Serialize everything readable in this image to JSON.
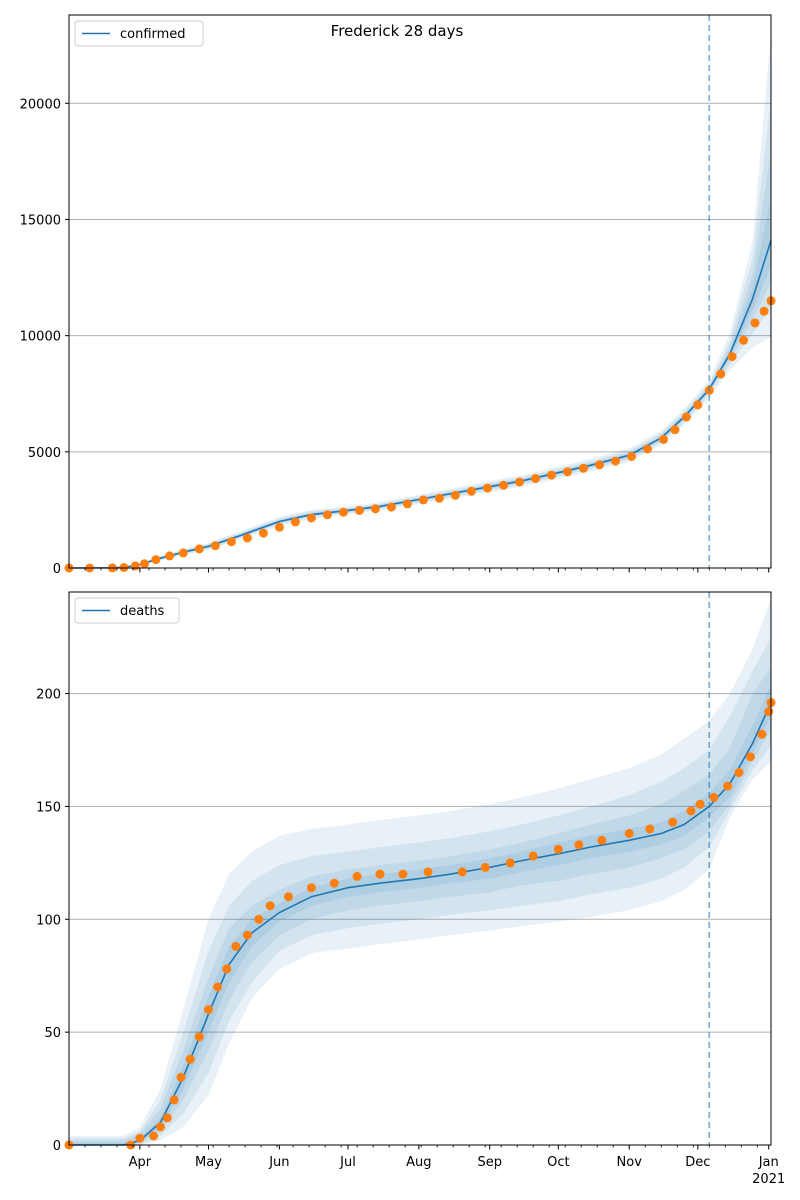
{
  "title": "Frederick 28 days",
  "colors": {
    "model": "#1f77b4",
    "observed": "#ff7f0e",
    "band": "#1f77b4",
    "grid": "#b0b0b0",
    "forecast_line": "#1f77b4"
  },
  "x_axis": {
    "range": [
      "2020-03-01",
      "2021-01-02"
    ],
    "month_labels": [
      {
        "date": "2020-04-01",
        "label": "Apr"
      },
      {
        "date": "2020-05-01",
        "label": "May"
      },
      {
        "date": "2020-06-01",
        "label": "Jun"
      },
      {
        "date": "2020-07-01",
        "label": "Jul"
      },
      {
        "date": "2020-08-01",
        "label": "Aug"
      },
      {
        "date": "2020-09-01",
        "label": "Sep"
      },
      {
        "date": "2020-10-01",
        "label": "Oct"
      },
      {
        "date": "2020-11-01",
        "label": "Nov"
      },
      {
        "date": "2020-12-01",
        "label": "Dec"
      },
      {
        "date": "2021-01-01",
        "label": "Jan"
      }
    ],
    "year_label": "2021",
    "forecast_start": "2020-12-06"
  },
  "chart_data": [
    {
      "type": "line",
      "legend": "confirmed",
      "legend_position": "top-left",
      "grid": "horizontal",
      "ylim": [
        0,
        23800
      ],
      "yticks": [
        0,
        5000,
        10000,
        15000,
        20000
      ],
      "model": {
        "dates": [
          "2020-03-01",
          "2020-03-20",
          "2020-03-25",
          "2020-04-01",
          "2020-04-10",
          "2020-04-20",
          "2020-05-01",
          "2020-05-15",
          "2020-06-01",
          "2020-06-15",
          "2020-07-01",
          "2020-07-15",
          "2020-08-01",
          "2020-08-15",
          "2020-09-01",
          "2020-09-15",
          "2020-10-01",
          "2020-10-15",
          "2020-11-01",
          "2020-11-15",
          "2020-11-25",
          "2020-12-06",
          "2020-12-15",
          "2020-12-25",
          "2021-01-02"
        ],
        "values": [
          0,
          10,
          30,
          150,
          420,
          680,
          930,
          1400,
          2000,
          2300,
          2480,
          2650,
          2950,
          3200,
          3500,
          3750,
          4100,
          4420,
          4850,
          5600,
          6500,
          7700,
          9200,
          11600,
          14100
        ],
        "bands": [
          {
            "lower": [
              0,
              0,
              0,
              100,
              330,
              560,
              780,
              1240,
              1820,
              2120,
              2320,
              2480,
              2760,
              2980,
              3260,
              3500,
              3830,
              4150,
              4560,
              5300,
              6150,
              7300,
              8500,
              9500,
              9950
            ],
            "upper": [
              0,
              20,
              60,
              200,
              510,
              800,
              1080,
              1580,
              2200,
              2500,
              2660,
              2830,
              3150,
              3420,
              3750,
              4000,
              4370,
              4700,
              5150,
              5900,
              6850,
              8100,
              10100,
              14100,
              23000
            ]
          },
          {
            "lower": [
              0,
              0,
              5,
              115,
              355,
              600,
              820,
              1290,
              1880,
              2180,
              2370,
              2530,
              2830,
              3060,
              3350,
              3590,
              3930,
              4250,
              4660,
              5400,
              6270,
              7450,
              8750,
              10100,
              11200
            ],
            "upper": [
              0,
              18,
              50,
              185,
              480,
              760,
              1040,
              1520,
              2130,
              2440,
              2600,
              2770,
              3080,
              3340,
              3660,
              3910,
              4270,
              4590,
              5040,
              5800,
              6730,
              7950,
              9750,
              13400,
              20200
            ]
          },
          {
            "lower": [
              0,
              2,
              12,
              130,
              380,
              630,
              860,
              1330,
              1930,
              2230,
              2410,
              2580,
              2880,
              3120,
              3410,
              3650,
              4000,
              4320,
              4730,
              5480,
              6370,
              7560,
              8950,
              10700,
              12300
            ],
            "upper": [
              0,
              15,
              45,
              170,
              460,
              730,
              1000,
              1480,
              2080,
              2380,
              2550,
              2720,
              3020,
              3280,
              3590,
              3840,
              4200,
              4520,
              4960,
              5720,
              6630,
              7840,
              9500,
              12700,
              18000
            ]
          },
          {
            "lower": [
              0,
              5,
              20,
              140,
              400,
              655,
              895,
              1365,
              1965,
              2265,
              2445,
              2615,
              2915,
              3160,
              3455,
              3700,
              4050,
              4370,
              4790,
              5540,
              6440,
              7640,
              9080,
              11100,
              13000
            ],
            "upper": [
              0,
              13,
              40,
              160,
              440,
              705,
              965,
              1435,
              2035,
              2335,
              2515,
              2685,
              2985,
              3240,
              3545,
              3800,
              4150,
              4470,
              4910,
              5660,
              6560,
              7760,
              9320,
              12100,
              16000
            ]
          }
        ]
      },
      "observed": [
        [
          "2020-03-01",
          0
        ],
        [
          "2020-03-10",
          0
        ],
        [
          "2020-03-20",
          5
        ],
        [
          "2020-03-25",
          20
        ],
        [
          "2020-03-30",
          90
        ],
        [
          "2020-04-03",
          180
        ],
        [
          "2020-04-08",
          360
        ],
        [
          "2020-04-14",
          520
        ],
        [
          "2020-04-20",
          650
        ],
        [
          "2020-04-27",
          820
        ],
        [
          "2020-05-04",
          960
        ],
        [
          "2020-05-11",
          1130
        ],
        [
          "2020-05-18",
          1290
        ],
        [
          "2020-05-25",
          1500
        ],
        [
          "2020-06-01",
          1750
        ],
        [
          "2020-06-08",
          1980
        ],
        [
          "2020-06-15",
          2150
        ],
        [
          "2020-06-22",
          2290
        ],
        [
          "2020-06-29",
          2400
        ],
        [
          "2020-07-06",
          2480
        ],
        [
          "2020-07-13",
          2550
        ],
        [
          "2020-07-20",
          2620
        ],
        [
          "2020-07-27",
          2760
        ],
        [
          "2020-08-03",
          2930
        ],
        [
          "2020-08-10",
          3000
        ],
        [
          "2020-08-17",
          3130
        ],
        [
          "2020-08-24",
          3300
        ],
        [
          "2020-08-31",
          3440
        ],
        [
          "2020-09-07",
          3560
        ],
        [
          "2020-09-14",
          3700
        ],
        [
          "2020-09-21",
          3850
        ],
        [
          "2020-09-28",
          4000
        ],
        [
          "2020-10-05",
          4140
        ],
        [
          "2020-10-12",
          4290
        ],
        [
          "2020-10-19",
          4440
        ],
        [
          "2020-10-26",
          4600
        ],
        [
          "2020-11-02",
          4800
        ],
        [
          "2020-11-09",
          5120
        ],
        [
          "2020-11-16",
          5530
        ],
        [
          "2020-11-21",
          5950
        ],
        [
          "2020-11-26",
          6500
        ],
        [
          "2020-12-01",
          7020
        ],
        [
          "2020-12-06",
          7650
        ],
        [
          "2020-12-11",
          8350
        ],
        [
          "2020-12-16",
          9100
        ],
        [
          "2020-12-21",
          9800
        ],
        [
          "2020-12-26",
          10550
        ],
        [
          "2020-12-30",
          11050
        ],
        [
          "2021-01-02",
          11500
        ]
      ]
    },
    {
      "type": "line",
      "legend": "deaths",
      "legend_position": "top-left",
      "grid": "horizontal",
      "ylim": [
        0,
        245
      ],
      "yticks": [
        0,
        50,
        100,
        150,
        200
      ],
      "model": {
        "dates": [
          "2020-03-01",
          "2020-03-25",
          "2020-04-01",
          "2020-04-10",
          "2020-04-20",
          "2020-05-01",
          "2020-05-10",
          "2020-05-20",
          "2020-06-01",
          "2020-06-15",
          "2020-07-01",
          "2020-07-15",
          "2020-08-01",
          "2020-08-15",
          "2020-09-01",
          "2020-09-15",
          "2020-10-01",
          "2020-10-15",
          "2020-11-01",
          "2020-11-15",
          "2020-11-25",
          "2020-12-06",
          "2020-12-15",
          "2020-12-25",
          "2021-01-02"
        ],
        "values": [
          0,
          0,
          2,
          10,
          30,
          58,
          80,
          94,
          103,
          110,
          114,
          116,
          118,
          120,
          123,
          126,
          129,
          132,
          135,
          138,
          142,
          150,
          160,
          178,
          196
        ],
        "bands": [
          {
            "lower": [
              0,
              0,
              0,
              2,
              8,
              22,
              45,
              65,
              78,
              85,
              87,
              89,
              91,
              93,
              95,
              97,
              99,
              101,
              104,
              108,
              113,
              122,
              145,
              162,
              170
            ],
            "upper": [
              4,
              4,
              8,
              25,
              60,
              100,
              120,
              130,
              137,
              140,
              142,
              144,
              146,
              148,
              151,
              154,
              158,
              162,
              167,
              173,
              180,
              188,
              200,
              220,
              242
            ]
          },
          {
            "lower": [
              0,
              0,
              0,
              4,
              14,
              32,
              55,
              72,
              86,
              93,
              96,
              98,
              100,
              102,
              104,
              106,
              108,
              111,
              114,
              118,
              123,
              132,
              148,
              166,
              177
            ],
            "upper": [
              3,
              3,
              6,
              20,
              50,
              86,
              106,
              117,
              124,
              128,
              130,
              132,
              134,
              136,
              139,
              142,
              146,
              150,
              155,
              161,
              167,
              175,
              190,
              210,
              225
            ]
          },
          {
            "lower": [
              0,
              0,
              1,
              6,
              20,
              42,
              64,
              81,
              93,
              100,
              104,
              106,
              108,
              110,
              112,
              115,
              117,
              120,
              123,
              127,
              131,
              139,
              151,
              170,
              184
            ],
            "upper": [
              2,
              2,
              5,
              16,
              42,
              74,
              96,
              106,
              113,
              119,
              122,
              124,
              126,
              128,
              131,
              134,
              138,
              142,
              146,
              151,
              157,
              164,
              176,
              200,
              212
            ]
          },
          {
            "lower": [
              0,
              0,
              1,
              8,
              25,
              50,
              72,
              88,
              99,
              106,
              110,
              112,
              114,
              116,
              118,
              121,
              124,
              127,
              130,
              133,
              137,
              145,
              154,
              174,
              190
            ],
            "upper": [
              1,
              1,
              3,
              12,
              35,
              66,
              88,
              100,
              107,
              114,
              118,
              120,
              122,
              124,
              127,
              130,
              134,
              137,
              140,
              143,
              148,
              156,
              166,
              186,
              204
            ]
          }
        ]
      },
      "observed": [
        [
          "2020-03-01",
          0
        ],
        [
          "2020-03-28",
          0
        ],
        [
          "2020-04-01",
          3
        ],
        [
          "2020-04-07",
          4
        ],
        [
          "2020-04-10",
          8
        ],
        [
          "2020-04-13",
          12
        ],
        [
          "2020-04-16",
          20
        ],
        [
          "2020-04-19",
          30
        ],
        [
          "2020-04-23",
          38
        ],
        [
          "2020-04-27",
          48
        ],
        [
          "2020-05-01",
          60
        ],
        [
          "2020-05-05",
          70
        ],
        [
          "2020-05-09",
          78
        ],
        [
          "2020-05-13",
          88
        ],
        [
          "2020-05-18",
          93
        ],
        [
          "2020-05-23",
          100
        ],
        [
          "2020-05-28",
          106
        ],
        [
          "2020-06-05",
          110
        ],
        [
          "2020-06-15",
          114
        ],
        [
          "2020-06-25",
          116
        ],
        [
          "2020-07-05",
          119
        ],
        [
          "2020-07-15",
          120
        ],
        [
          "2020-07-25",
          120
        ],
        [
          "2020-08-05",
          121
        ],
        [
          "2020-08-20",
          121
        ],
        [
          "2020-08-30",
          123
        ],
        [
          "2020-09-10",
          125
        ],
        [
          "2020-09-20",
          128
        ],
        [
          "2020-10-01",
          131
        ],
        [
          "2020-10-10",
          133
        ],
        [
          "2020-10-20",
          135
        ],
        [
          "2020-11-01",
          138
        ],
        [
          "2020-11-10",
          140
        ],
        [
          "2020-11-20",
          143
        ],
        [
          "2020-11-28",
          148
        ],
        [
          "2020-12-02",
          151
        ],
        [
          "2020-12-08",
          154
        ],
        [
          "2020-12-14",
          159
        ],
        [
          "2020-12-19",
          165
        ],
        [
          "2020-12-24",
          172
        ],
        [
          "2020-12-29",
          182
        ],
        [
          "2021-01-01",
          192
        ],
        [
          "2021-01-02",
          196
        ]
      ]
    }
  ]
}
